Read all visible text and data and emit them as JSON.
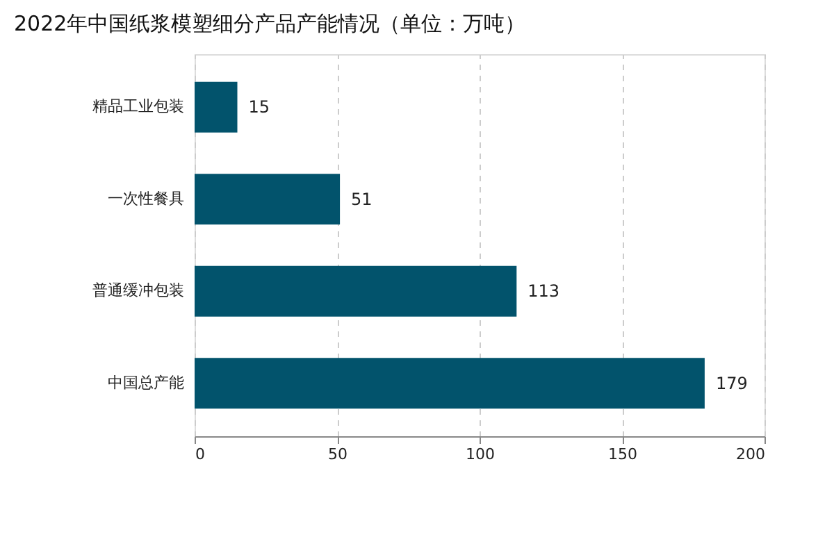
{
  "chart_data": {
    "type": "bar",
    "title": "2022年中国纸浆模塑细分产品产能情况（单位：万吨）",
    "orientation": "horizontal",
    "categories": [
      "精品工业包装",
      "一次性餐具",
      "普通缓冲包装",
      "中国总产能"
    ],
    "values": [
      15,
      51,
      113,
      179
    ],
    "color": "#02536c",
    "xlim": [
      0,
      200
    ],
    "xticks": [
      0,
      50,
      100,
      150,
      200
    ],
    "grid": "x",
    "data_labels": true
  }
}
